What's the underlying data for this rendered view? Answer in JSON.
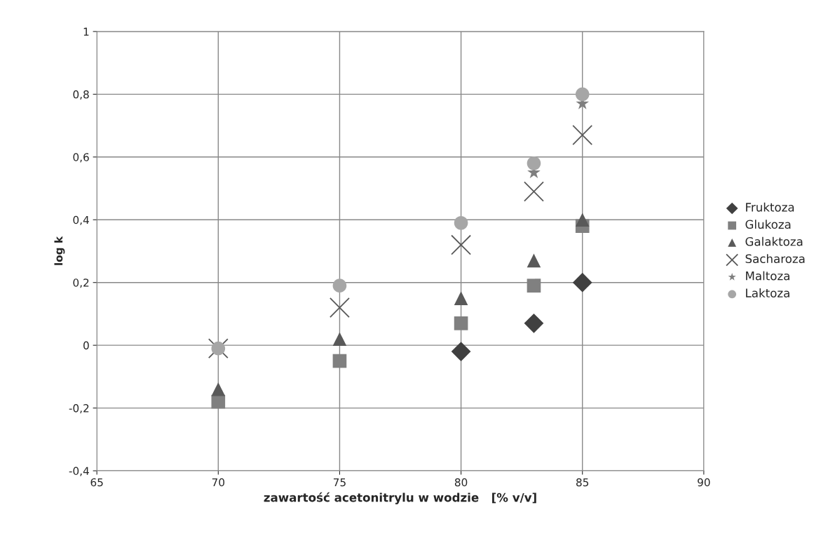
{
  "chart_data": {
    "type": "scatter",
    "xlabel": "zawartość acetonitrylu w wodzie   [% v/v]",
    "ylabel": "log k",
    "x": [
      70,
      75,
      80,
      83,
      85
    ],
    "series": [
      {
        "name": "Fruktoza",
        "color": "#404040",
        "marker": "diamond",
        "values": [
          null,
          null,
          -0.02,
          0.07,
          0.2
        ]
      },
      {
        "name": "Glukoza",
        "color": "#808080",
        "marker": "square",
        "values": [
          -0.18,
          -0.05,
          0.07,
          0.19,
          0.38
        ]
      },
      {
        "name": "Galaktoza",
        "color": "#595959",
        "marker": "triangle",
        "values": [
          -0.14,
          0.02,
          0.15,
          0.27,
          0.4
        ]
      },
      {
        "name": "Sacharoza",
        "color": "#595959",
        "marker": "cross",
        "values": [
          -0.01,
          0.12,
          0.32,
          0.49,
          0.67
        ]
      },
      {
        "name": "Maltoza",
        "color": "#7f7f7f",
        "marker": "star",
        "values": [
          null,
          null,
          null,
          0.55,
          0.77
        ]
      },
      {
        "name": "Laktoza",
        "color": "#a6a6a6",
        "marker": "circle",
        "values": [
          -0.01,
          0.19,
          0.39,
          0.58,
          0.8
        ]
      }
    ],
    "xlim": [
      65,
      90
    ],
    "xticks": [
      65,
      70,
      75,
      80,
      85,
      90
    ],
    "ylim": [
      -0.4,
      1
    ],
    "yticks": [
      {
        "value": -0.4,
        "label": "-0,4"
      },
      {
        "value": -0.2,
        "label": "-0,2"
      },
      0,
      {
        "value": 0.2,
        "label": "0,2"
      },
      {
        "value": 0.4,
        "label": "0,4"
      },
      {
        "value": 0.6,
        "label": "0,6"
      },
      {
        "value": 0.8,
        "label": "0,8"
      },
      1
    ],
    "grid": true,
    "legend": "right"
  }
}
